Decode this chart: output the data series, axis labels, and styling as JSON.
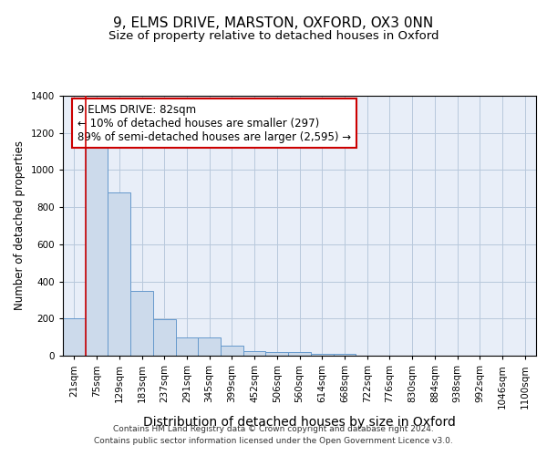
{
  "title_line1": "9, ELMS DRIVE, MARSTON, OXFORD, OX3 0NN",
  "title_line2": "Size of property relative to detached houses in Oxford",
  "xlabel": "Distribution of detached houses by size in Oxford",
  "ylabel": "Number of detached properties",
  "footer_line1": "Contains HM Land Registry data © Crown copyright and database right 2024.",
  "footer_line2": "Contains public sector information licensed under the Open Government Licence v3.0.",
  "categories": [
    "21sqm",
    "75sqm",
    "129sqm",
    "183sqm",
    "237sqm",
    "291sqm",
    "345sqm",
    "399sqm",
    "452sqm",
    "506sqm",
    "560sqm",
    "614sqm",
    "668sqm",
    "722sqm",
    "776sqm",
    "830sqm",
    "884sqm",
    "938sqm",
    "992sqm",
    "1046sqm",
    "1100sqm"
  ],
  "values": [
    200,
    1130,
    880,
    350,
    195,
    100,
    100,
    55,
    25,
    20,
    20,
    10,
    10,
    0,
    0,
    0,
    0,
    0,
    0,
    0,
    0
  ],
  "bar_color": "#ccdaeb",
  "bar_edge_color": "#6699cc",
  "bar_edge_width": 0.7,
  "red_line_x": 0.5,
  "annotation_text": "9 ELMS DRIVE: 82sqm\n← 10% of detached houses are smaller (297)\n89% of semi-detached houses are larger (2,595) →",
  "annotation_box_color": "#ffffff",
  "annotation_border_color": "#cc0000",
  "annotation_fontsize": 8.5,
  "ylim": [
    0,
    1400
  ],
  "yticks": [
    0,
    200,
    400,
    600,
    800,
    1000,
    1200,
    1400
  ],
  "grid_color": "#b8c8dc",
  "background_color": "#e8eef8",
  "title_fontsize": 11,
  "subtitle_fontsize": 9.5,
  "xlabel_fontsize": 10,
  "ylabel_fontsize": 8.5,
  "tick_fontsize": 7.5,
  "footer_fontsize": 6.5
}
